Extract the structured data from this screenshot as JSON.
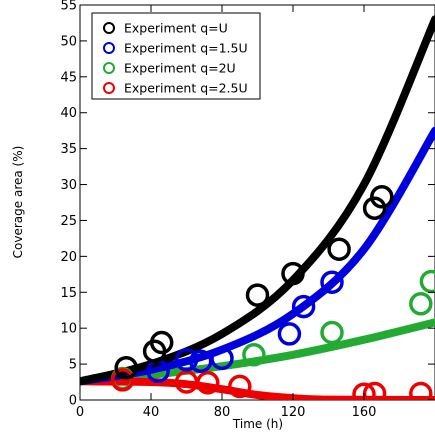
{
  "chart_data": {
    "type": "scatter",
    "xlabel": "Time (h)",
    "ylabel": "Coverage area (%)",
    "xlim": [
      0,
      200
    ],
    "ylim": [
      0,
      55
    ],
    "xticks": [
      0,
      40,
      80,
      120,
      160
    ],
    "yticks": [
      0,
      5,
      10,
      15,
      20,
      25,
      30,
      35,
      40,
      45,
      50,
      55
    ],
    "grid": false,
    "legend_position": "top-left",
    "series": [
      {
        "name": "Experiment q=U",
        "color": "#000000",
        "points": [
          [
            26,
            4.5
          ],
          [
            42,
            6.8
          ],
          [
            46,
            8.0
          ],
          [
            100,
            14.6
          ],
          [
            120,
            17.6
          ],
          [
            146,
            21.0
          ],
          [
            166,
            26.7
          ],
          [
            170,
            28.3
          ]
        ],
        "fit": [
          [
            0,
            2.6
          ],
          [
            40,
            5.0
          ],
          [
            80,
            9.2
          ],
          [
            120,
            16.7
          ],
          [
            160,
            30.0
          ],
          [
            200,
            53.0
          ]
        ]
      },
      {
        "name": "Experiment q=1.5U",
        "color": "#0000dd",
        "points": [
          [
            44,
            4.0
          ],
          [
            60,
            5.6
          ],
          [
            68,
            5.4
          ],
          [
            80,
            5.8
          ],
          [
            118,
            9.2
          ],
          [
            126,
            13.0
          ],
          [
            142,
            16.4
          ]
        ],
        "fit": [
          [
            0,
            2.6
          ],
          [
            40,
            4.2
          ],
          [
            80,
            7.0
          ],
          [
            120,
            12.0
          ],
          [
            160,
            21.0
          ],
          [
            200,
            37.5
          ]
        ]
      },
      {
        "name": "Experiment q=2U",
        "color": "#22aa33",
        "points": [
          [
            24,
            3.0
          ],
          [
            98,
            6.3
          ],
          [
            142,
            9.4
          ],
          [
            192,
            13.4
          ],
          [
            198,
            16.5
          ]
        ],
        "fit": [
          [
            0,
            2.6
          ],
          [
            40,
            3.5
          ],
          [
            80,
            4.7
          ],
          [
            120,
            6.3
          ],
          [
            160,
            8.4
          ],
          [
            200,
            10.8
          ]
        ]
      },
      {
        "name": "Experiment q=2.5U",
        "color": "#ee0000",
        "points": [
          [
            24,
            2.8
          ],
          [
            60,
            2.5
          ],
          [
            72,
            2.4
          ],
          [
            90,
            1.9
          ],
          [
            160,
            0.8
          ],
          [
            166,
            0.9
          ],
          [
            192,
            0.9
          ]
        ],
        "fit": [
          [
            0,
            2.6
          ],
          [
            40,
            2.5
          ],
          [
            60,
            2.2
          ],
          [
            80,
            1.5
          ],
          [
            100,
            0.7
          ],
          [
            120,
            0.25
          ],
          [
            140,
            0.05
          ],
          [
            200,
            0.0
          ]
        ]
      }
    ]
  }
}
